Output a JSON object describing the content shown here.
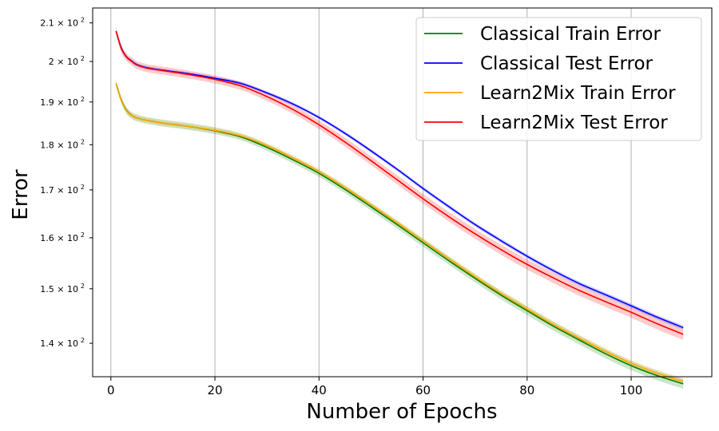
{
  "chart_data": {
    "type": "line",
    "title": "",
    "xlabel": "Number of Epochs",
    "ylabel": "Error",
    "xlim": [
      -3.5,
      115.5
    ],
    "ylim": [
      134.2,
      214.0
    ],
    "y_scale": "log",
    "grid": "x-only",
    "legend_position": "top-right",
    "xticks": [
      {
        "value": 0,
        "label": "0"
      },
      {
        "value": 20,
        "label": "20"
      },
      {
        "value": 40,
        "label": "40"
      },
      {
        "value": 60,
        "label": "60"
      },
      {
        "value": 80,
        "label": "80"
      },
      {
        "value": 100,
        "label": "100"
      }
    ],
    "yticks": [
      {
        "value": 140,
        "label": "1.4 × 10²"
      },
      {
        "value": 150,
        "label": "1.5 × 10²"
      },
      {
        "value": 160,
        "label": "1.6 × 10²"
      },
      {
        "value": 170,
        "label": "1.7 × 10²"
      },
      {
        "value": 180,
        "label": "1.8 × 10²"
      },
      {
        "value": 190,
        "label": "1.9 × 10²"
      },
      {
        "value": 200,
        "label": "2 × 10²"
      },
      {
        "value": 210,
        "label": "2.1 × 10²"
      }
    ],
    "x": [
      1,
      2,
      3,
      4,
      5,
      7,
      10,
      15,
      20,
      25,
      30,
      35,
      40,
      45,
      50,
      55,
      60,
      65,
      70,
      75,
      80,
      85,
      90,
      95,
      100,
      105,
      110
    ],
    "series": [
      {
        "name": "Classical Train Error",
        "color": "#008000",
        "values": [
          194.5,
          190.5,
          188.0,
          186.8,
          186.2,
          185.6,
          185.0,
          184.2,
          183.2,
          181.8,
          179.4,
          176.6,
          173.6,
          170.1,
          166.4,
          162.7,
          159.0,
          155.4,
          152.0,
          148.8,
          145.9,
          143.1,
          140.6,
          138.2,
          136.1,
          134.4,
          133.0
        ],
        "band": 0.8
      },
      {
        "name": "Classical Test Error",
        "color": "#0000ff",
        "values": [
          207.8,
          203.5,
          201.2,
          200.1,
          199.2,
          198.4,
          197.8,
          196.9,
          195.8,
          194.5,
          192.2,
          189.5,
          186.3,
          182.6,
          178.6,
          174.5,
          170.3,
          166.4,
          162.7,
          159.4,
          156.3,
          153.5,
          151.0,
          148.9,
          146.8,
          144.7,
          142.8
        ],
        "band": 0.4
      },
      {
        "name": "Learn2Mix Train Error",
        "color": "#ffa500",
        "values": [
          194.5,
          190.4,
          187.9,
          186.8,
          186.2,
          185.6,
          185.0,
          184.2,
          183.3,
          182.0,
          179.8,
          177.0,
          174.0,
          170.5,
          166.8,
          163.1,
          159.4,
          155.8,
          152.3,
          149.1,
          146.2,
          143.4,
          140.9,
          138.6,
          136.5,
          134.8,
          133.4
        ],
        "band": 0.6
      },
      {
        "name": "Learn2Mix Test Error",
        "color": "#ff0000",
        "values": [
          207.8,
          203.3,
          201.1,
          200.0,
          199.1,
          198.3,
          197.7,
          196.7,
          195.5,
          193.9,
          191.3,
          188.2,
          184.6,
          180.6,
          176.4,
          172.2,
          168.1,
          164.3,
          160.8,
          157.6,
          154.7,
          152.1,
          149.7,
          147.6,
          145.6,
          143.5,
          141.6
        ],
        "band": 1.0
      }
    ]
  }
}
